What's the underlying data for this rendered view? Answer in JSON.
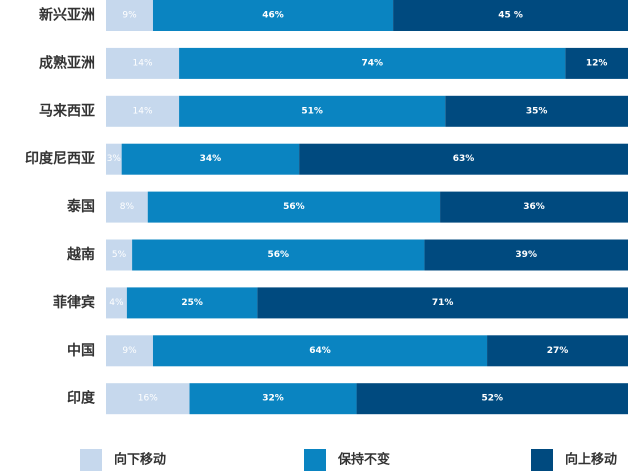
{
  "chart_data": {
    "type": "bar",
    "orientation": "horizontal",
    "stacked": "percent",
    "title": "",
    "xlabel": "",
    "ylabel": "",
    "xlim": [
      0,
      100
    ],
    "categories": [
      "新兴亚洲",
      "成熟亚洲",
      "马来西亚",
      "印度尼西亚",
      "泰国",
      "越南",
      "菲律宾",
      "中国",
      "印度"
    ],
    "series": [
      {
        "name": "向下移动",
        "color": "#c6d8ed",
        "label_color": "#ffffff",
        "values": [
          9,
          14,
          14,
          3,
          8,
          5,
          4,
          9,
          16
        ],
        "labels": [
          "9%",
          "14%",
          "14%",
          "3%",
          "8%",
          "5%",
          "4%",
          "9%",
          "16%"
        ]
      },
      {
        "name": "保持不变",
        "color": "#0a84c1",
        "label_color": "#ffffff",
        "values": [
          46,
          74,
          51,
          34,
          56,
          56,
          25,
          64,
          32
        ],
        "labels": [
          "46%",
          "74%",
          "51%",
          "34%",
          "56%",
          "56%",
          "25%",
          "64%",
          "32%"
        ]
      },
      {
        "name": "向上移动",
        "color": "#004a7f",
        "label_color": "#ffffff",
        "values": [
          45,
          12,
          35,
          63,
          36,
          39,
          71,
          27,
          52
        ],
        "labels": [
          "45 %",
          "12%",
          "35%",
          "63%",
          "36%",
          "39%",
          "71%",
          "27%",
          "52%"
        ]
      }
    ],
    "legend": {
      "position": "bottom",
      "entries": [
        "向下移动",
        "保持不变",
        "向上移动"
      ]
    },
    "category_label_color": "#333333"
  }
}
